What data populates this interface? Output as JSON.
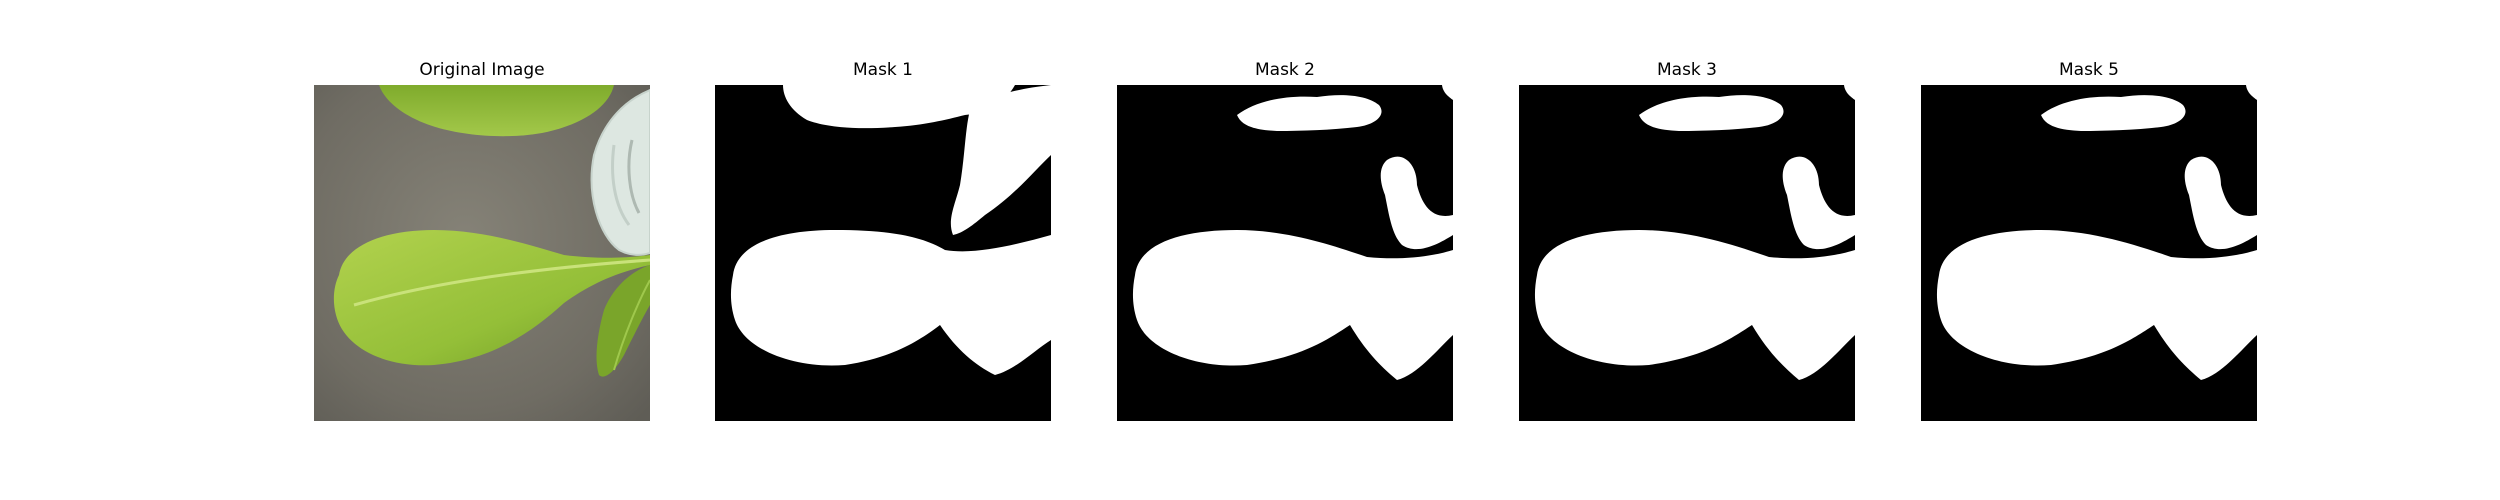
{
  "figure": {
    "panels": [
      {
        "title": "Original Image",
        "kind": "photo"
      },
      {
        "title": "Mask 1",
        "kind": "mask"
      },
      {
        "title": "Mask 2",
        "kind": "mask"
      },
      {
        "title": "Mask 3",
        "kind": "mask"
      },
      {
        "title": "Mask 5",
        "kind": "mask"
      }
    ]
  },
  "colors": {
    "background_soil": "#77746a",
    "leaf_green": "#9cc43c",
    "leaf_dark": "#6f9a26",
    "container": "#dfe8e2",
    "mask_bg": "#000000",
    "mask_fg": "#ffffff"
  }
}
